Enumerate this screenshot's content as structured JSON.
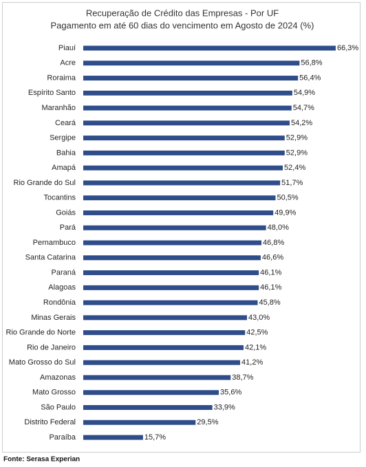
{
  "chart_data": {
    "type": "bar",
    "orientation": "horizontal",
    "title": "Recuperação de Crédito das Empresas - Por UF",
    "subtitle": "Pagamento em até 60 dias do vencimento em Agosto de 2024 (%)",
    "categories": [
      "Piauí",
      "Acre",
      "Roraima",
      "Espírito Santo",
      "Maranhão",
      "Ceará",
      "Sergipe",
      "Bahia",
      "Amapá",
      "Rio Grande do Sul",
      "Tocantins",
      "Goiás",
      "Pará",
      "Pernambuco",
      "Santa Catarina",
      "Paraná",
      "Alagoas",
      "Rondônia",
      "Minas Gerais",
      "Rio Grande do Norte",
      "Rio de Janeiro",
      "Mato Grosso do Sul",
      "Amazonas",
      "Mato Grosso",
      "São Paulo",
      "Distrito Federal",
      "Paraíba"
    ],
    "values": [
      66.3,
      56.8,
      56.4,
      54.9,
      54.7,
      54.2,
      52.9,
      52.9,
      52.4,
      51.7,
      50.5,
      49.9,
      48.0,
      46.8,
      46.6,
      46.1,
      46.1,
      45.8,
      43.0,
      42.5,
      42.1,
      41.2,
      38.7,
      35.6,
      33.9,
      29.5,
      15.7
    ],
    "value_labels": [
      "66,3%",
      "56,8%",
      "56,4%",
      "54,9%",
      "54,7%",
      "54,2%",
      "52,9%",
      "52,9%",
      "52,4%",
      "51,7%",
      "50,5%",
      "49,9%",
      "48,0%",
      "46,8%",
      "46,6%",
      "46,1%",
      "46,1%",
      "45,8%",
      "43,0%",
      "42,5%",
      "42,1%",
      "41,2%",
      "38,7%",
      "35,6%",
      "33,9%",
      "29,5%",
      "15,7%"
    ],
    "color": "#2e4d8a",
    "source": "Fonte: Serasa Experian"
  }
}
